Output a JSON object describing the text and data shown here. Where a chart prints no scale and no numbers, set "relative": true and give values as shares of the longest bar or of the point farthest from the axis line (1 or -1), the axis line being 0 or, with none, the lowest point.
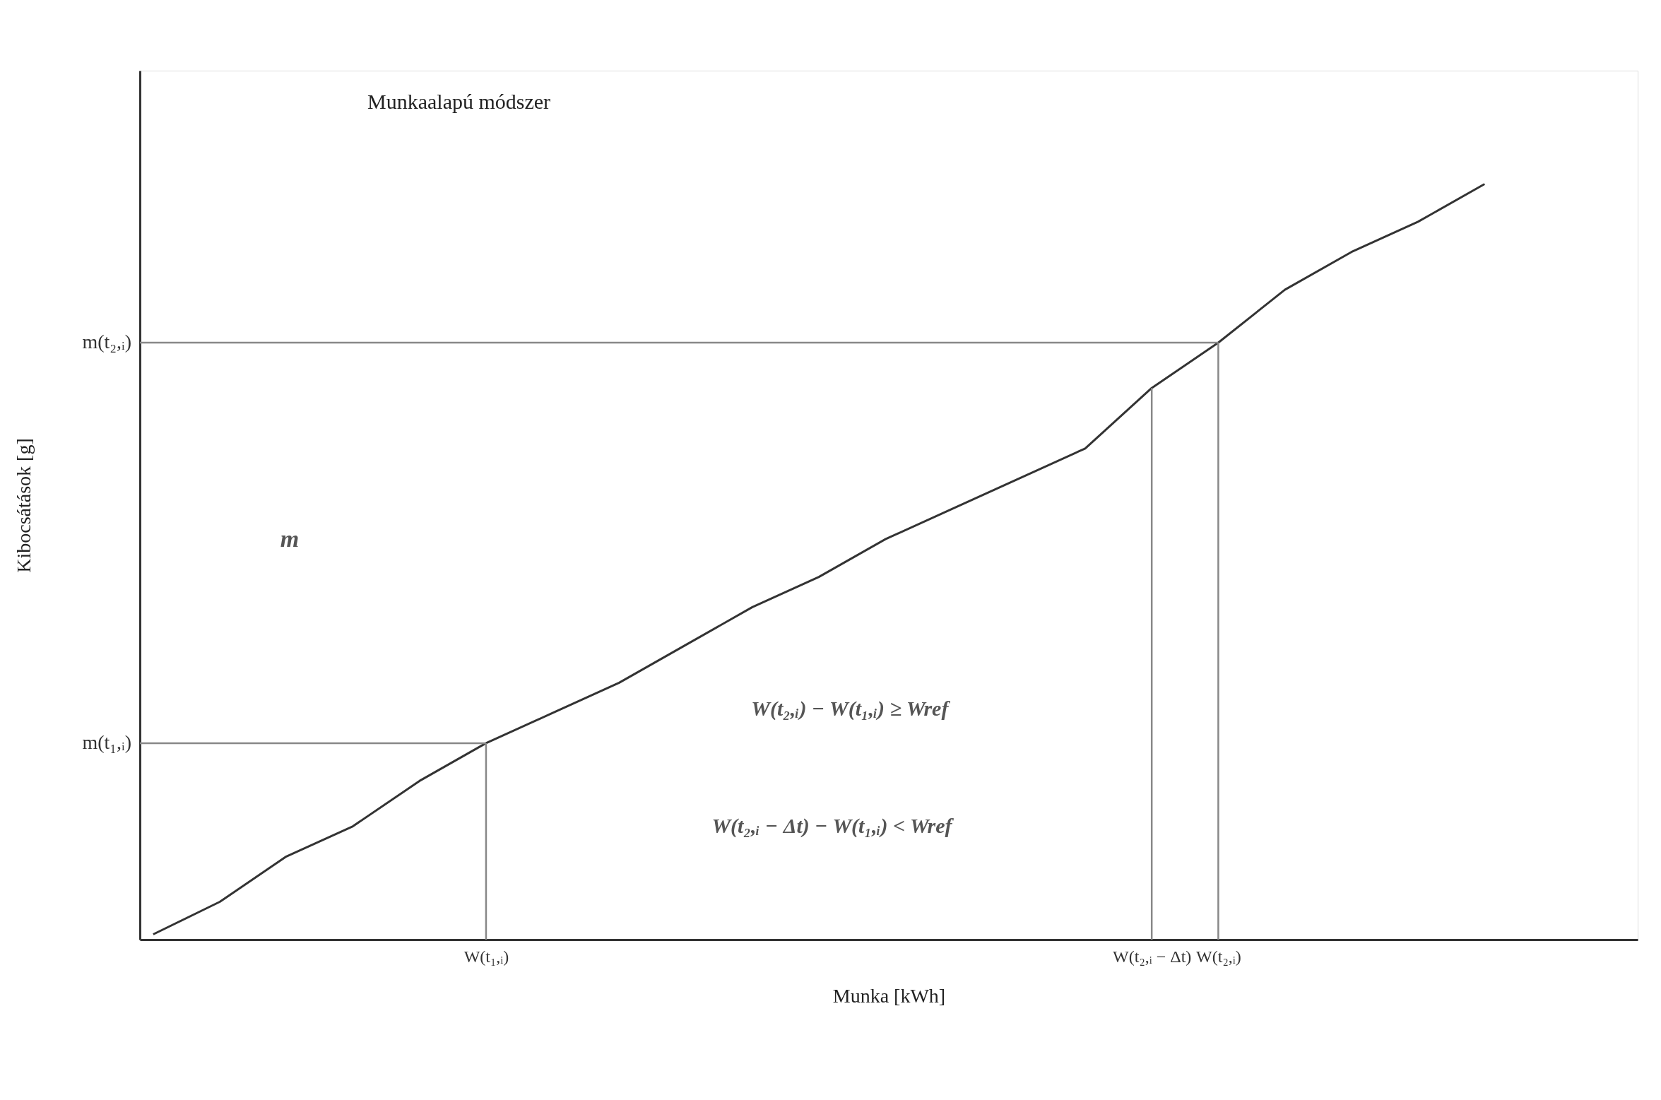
{
  "chart_data": {
    "type": "line",
    "title": "Munkaalapú módszer",
    "xlabel": "Munka  [kWh]",
    "ylabel": "Kibocsátások [g]",
    "relative": true,
    "categories": [
      null,
      null,
      null,
      null,
      null,
      "W(t₁,ᵢ)",
      null,
      null,
      null,
      null,
      null,
      null,
      null,
      null,
      null,
      "W(t₂,ᵢ − Δt)",
      "W(t₂,ᵢ)",
      null,
      null,
      null,
      null
    ],
    "grid": false,
    "marker": "none",
    "line_style": "solid",
    "series": [
      {
        "color": "#333333",
        "values": [
          0.007,
          0.05,
          0.11,
          0.15,
          0.21,
          0.26,
          0.3,
          0.34,
          0.39,
          0.44,
          0.48,
          0.53,
          0.57,
          0.61,
          0.65,
          0.73,
          0.79,
          0.86,
          0.91,
          0.95,
          1.0
        ]
      }
    ],
    "ref_lines": [
      {
        "axis": "x",
        "value": "W(t₁,ᵢ)",
        "color": "#888888"
      },
      {
        "axis": "x",
        "value": "W(t₂,ᵢ − Δt)",
        "color": "#888888"
      },
      {
        "axis": "x",
        "value": "W(t₂,ᵢ)",
        "color": "#888888"
      },
      {
        "axis": "y",
        "value": 0.26,
        "label": "m(t₁,ᵢ)",
        "color": "#888888"
      },
      {
        "axis": "y",
        "value": 0.79,
        "label": "m(t₂,ᵢ)",
        "color": "#888888"
      }
    ],
    "annotations": [
      "m",
      "W(t₂,ᵢ) − W(t₁,ᵢ) ≥ Wref",
      "W(t₂,ᵢ − Δt) − W(t₁,ᵢ) < Wref"
    ]
  }
}
